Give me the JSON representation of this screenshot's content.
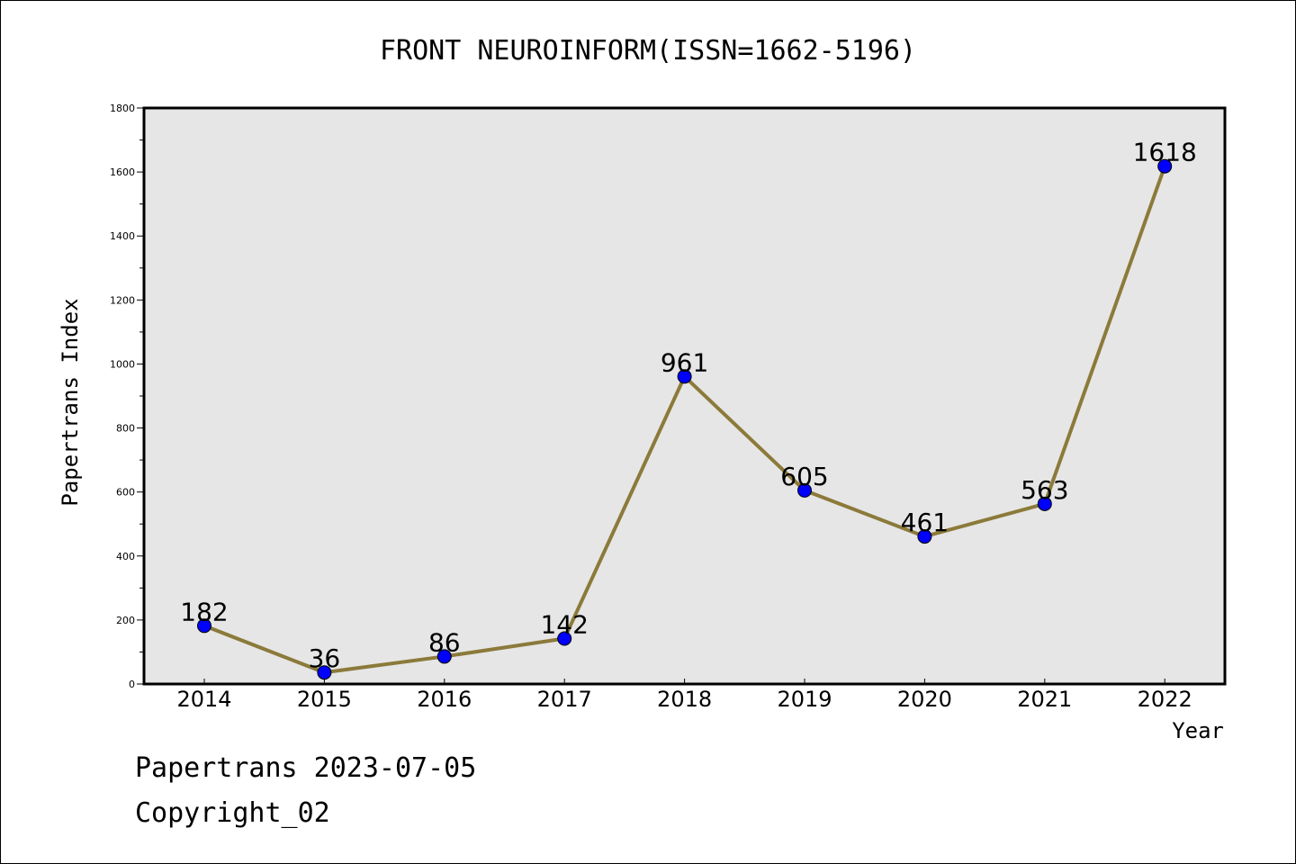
{
  "chart_data": {
    "type": "line",
    "title": "FRONT NEUROINFORM(ISSN=1662-5196)",
    "xlabel": "Year",
    "ylabel": "Papertrans Index",
    "categories": [
      "2014",
      "2015",
      "2016",
      "2017",
      "2018",
      "2019",
      "2020",
      "2021",
      "2022"
    ],
    "values": [
      182,
      36,
      86,
      142,
      961,
      605,
      461,
      563,
      1618
    ],
    "data_labels": [
      "182",
      "36",
      "86",
      "142",
      "961",
      "605",
      "461",
      "563",
      "1618"
    ],
    "ylim": [
      0,
      1800
    ],
    "y_ticks": [
      "0",
      "200",
      "400",
      "600",
      "800",
      "1000",
      "1200",
      "1400",
      "1600",
      "1800"
    ],
    "grid": false,
    "colors": {
      "line": "#8b7a3a",
      "marker": "#0000ff",
      "plot_bg": "#e6e6e6"
    }
  },
  "footer": {
    "line1": "Papertrans 2023-07-05",
    "line2": "Copyright_02"
  }
}
